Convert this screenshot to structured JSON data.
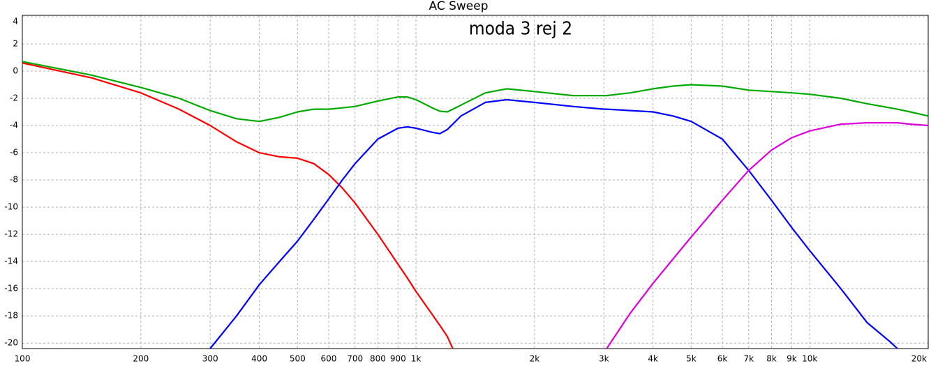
{
  "chart_data": {
    "type": "line",
    "title": "AC Sweep",
    "annotation": "moda 3 rej 2",
    "log_x": true,
    "grid": true,
    "xlim": [
      100,
      20000
    ],
    "ylim": [
      -20.4,
      4.1
    ],
    "xticks": [
      100,
      200,
      300,
      400,
      500,
      600,
      700,
      800,
      900,
      {
        "value": 1000,
        "label": "1k"
      },
      {
        "value": 2000,
        "label": "2k"
      },
      {
        "value": 3000,
        "label": "3k"
      },
      {
        "value": 4000,
        "label": "4k"
      },
      {
        "value": 5000,
        "label": "5k"
      },
      {
        "value": 6000,
        "label": "6k"
      },
      {
        "value": 7000,
        "label": "7k"
      },
      {
        "value": 8000,
        "label": "8k"
      },
      {
        "value": 9000,
        "label": "9k"
      },
      {
        "value": 10000,
        "label": "10k"
      },
      {
        "value": 20000,
        "label": "20k"
      }
    ],
    "yticks": [
      4,
      2,
      0,
      -2,
      -4,
      -6,
      -8,
      -10,
      -12,
      -14,
      -16,
      -18,
      -20
    ],
    "x": [
      100,
      150,
      200,
      250,
      300,
      350,
      400,
      450,
      500,
      550,
      600,
      650,
      700,
      800,
      900,
      950,
      1000,
      1100,
      1150,
      1200,
      1240,
      1300,
      1500,
      1700,
      2000,
      2500,
      3000,
      3050,
      3500,
      4000,
      4500,
      5000,
      6000,
      7000,
      8000,
      9000,
      10000,
      12000,
      14000,
      16000,
      16700,
      18000,
      20000
    ],
    "series": [
      {
        "color": "#ff0000",
        "values": [
          0.6,
          -0.5,
          -1.6,
          -2.8,
          -4.0,
          -5.2,
          -6.0,
          -6.3,
          -6.4,
          -6.8,
          -7.6,
          -8.6,
          -9.7,
          -12.0,
          -14.2,
          -15.2,
          -16.2,
          -17.9,
          -18.7,
          -19.5,
          -20.4,
          null,
          null,
          null,
          null,
          null,
          null,
          null,
          null,
          null,
          null,
          null,
          null,
          null,
          null,
          null,
          null,
          null,
          null,
          null,
          null,
          null,
          null
        ]
      },
      {
        "color": "#0000ff",
        "values": [
          null,
          null,
          null,
          null,
          -20.4,
          -18.0,
          -15.7,
          -14.0,
          -12.5,
          -10.9,
          -9.4,
          -8.0,
          -6.8,
          -5.0,
          -4.2,
          -4.1,
          -4.2,
          -4.5,
          -4.6,
          -4.3,
          -3.9,
          -3.3,
          -2.3,
          -2.1,
          -2.3,
          -2.6,
          -2.8,
          -2.8,
          -2.9,
          -3.0,
          -3.3,
          -3.7,
          -5.0,
          -7.3,
          -9.5,
          -11.5,
          -13.2,
          -16.0,
          -18.5,
          -19.9,
          -20.4,
          null,
          null
        ]
      },
      {
        "color": "#00aa00",
        "values": [
          0.7,
          -0.3,
          -1.2,
          -2.0,
          -2.9,
          -3.5,
          -3.7,
          -3.4,
          -3.0,
          -2.8,
          -2.8,
          -2.7,
          -2.6,
          -2.2,
          -1.9,
          -1.9,
          -2.1,
          -2.7,
          -2.95,
          -3.0,
          -2.8,
          -2.5,
          -1.6,
          -1.3,
          -1.5,
          -1.8,
          -1.8,
          -1.8,
          -1.6,
          -1.3,
          -1.1,
          -1.0,
          -1.1,
          -1.4,
          -1.5,
          -1.6,
          -1.7,
          -2.0,
          -2.4,
          -2.7,
          -2.8,
          -3.0,
          -3.3
        ]
      },
      {
        "color": "#dd00dd",
        "values": [
          null,
          null,
          null,
          null,
          null,
          null,
          null,
          null,
          null,
          null,
          null,
          null,
          null,
          null,
          null,
          null,
          null,
          null,
          null,
          null,
          null,
          null,
          null,
          null,
          null,
          null,
          null,
          -20.4,
          -17.8,
          -15.6,
          -13.8,
          -12.2,
          -9.5,
          -7.3,
          -5.8,
          -4.9,
          -4.4,
          -3.9,
          -3.8,
          -3.8,
          -3.8,
          -3.9,
          -4.0
        ]
      }
    ]
  }
}
